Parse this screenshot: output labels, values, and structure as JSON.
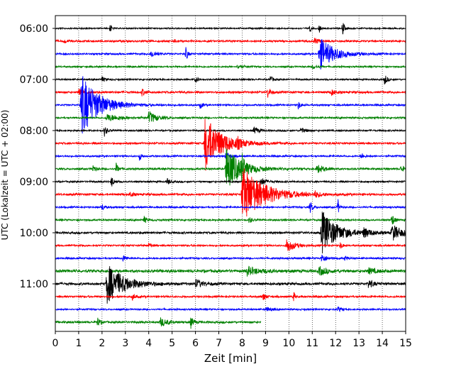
{
  "chart_data": {
    "type": "line",
    "title": "",
    "xlabel": "Zeit  [min]",
    "ylabel": "UTC (Lokalzeit = UTC + 02:00)",
    "xlim": [
      0,
      15
    ],
    "x_ticks": [
      "0",
      "1",
      "2",
      "3",
      "4",
      "5",
      "6",
      "7",
      "8",
      "9",
      "10",
      "11",
      "12",
      "13",
      "14",
      "15"
    ],
    "y_ticks": [
      {
        "label": "06:00",
        "row": 0
      },
      {
        "label": "07:00",
        "row": 4
      },
      {
        "label": "08:00",
        "row": 8
      },
      {
        "label": "09:00",
        "row": 12
      },
      {
        "label": "10:00",
        "row": 16
      },
      {
        "label": "11:00",
        "row": 20
      }
    ],
    "rows_per_hour": 4,
    "minutes_per_row": 15,
    "grid": {
      "vertical": true,
      "style": "dotted"
    },
    "trace_colors": [
      "#000000",
      "#ff0000",
      "#0000ff",
      "#008000"
    ],
    "rows": [
      {
        "time": "06:00",
        "color": "#000000",
        "noise": 0.9,
        "end_min": 15,
        "events": [
          {
            "t": 2.35,
            "a": 8,
            "d": 0.05
          },
          {
            "t": 10.9,
            "a": 6,
            "d": 0.05
          },
          {
            "t": 11.3,
            "a": 6,
            "d": 0.05
          },
          {
            "t": 12.3,
            "a": 15,
            "d": 0.05
          }
        ]
      },
      {
        "time": "06:15",
        "color": "#ff0000",
        "noise": 1.2,
        "end_min": 15,
        "events": [
          {
            "t": 0.4,
            "a": 3,
            "d": 0.1
          },
          {
            "t": 5.1,
            "a": 3,
            "d": 0.1
          },
          {
            "t": 11.1,
            "a": 4,
            "d": 0.2
          }
        ]
      },
      {
        "time": "06:30",
        "color": "#0000ff",
        "noise": 1.1,
        "end_min": 15,
        "events": [
          {
            "t": 4.1,
            "a": 5,
            "d": 0.2
          },
          {
            "t": 5.6,
            "a": 14,
            "d": 0.05
          },
          {
            "t": 11.3,
            "a": 24,
            "d": 0.6
          }
        ]
      },
      {
        "time": "06:45",
        "color": "#008000",
        "noise": 1.0,
        "end_min": 15,
        "events": [
          {
            "t": 7.8,
            "a": 3,
            "d": 0.2
          },
          {
            "t": 11.0,
            "a": 3,
            "d": 0.2
          }
        ]
      },
      {
        "time": "07:00",
        "color": "#000000",
        "noise": 1.0,
        "end_min": 15,
        "events": [
          {
            "t": 2.0,
            "a": 4,
            "d": 0.1
          },
          {
            "t": 6.0,
            "a": 5,
            "d": 0.1
          },
          {
            "t": 9.2,
            "a": 5,
            "d": 0.1
          },
          {
            "t": 14.1,
            "a": 8,
            "d": 0.1
          }
        ]
      },
      {
        "time": "07:15",
        "color": "#ff0000",
        "noise": 1.3,
        "end_min": 15,
        "events": [
          {
            "t": 1.0,
            "a": 5,
            "d": 0.2
          },
          {
            "t": 3.7,
            "a": 5,
            "d": 0.15
          },
          {
            "t": 9.1,
            "a": 9,
            "d": 0.1
          },
          {
            "t": 11.8,
            "a": 5,
            "d": 0.15
          }
        ]
      },
      {
        "time": "07:30",
        "color": "#0000ff",
        "noise": 1.1,
        "end_min": 15,
        "events": [
          {
            "t": 1.1,
            "a": 45,
            "d": 0.7
          },
          {
            "t": 6.2,
            "a": 5,
            "d": 0.1
          },
          {
            "t": 10.4,
            "a": 6,
            "d": 0.1
          }
        ]
      },
      {
        "time": "07:45",
        "color": "#008000",
        "noise": 1.1,
        "end_min": 15,
        "events": [
          {
            "t": 2.2,
            "a": 5,
            "d": 0.6
          },
          {
            "t": 4.0,
            "a": 9,
            "d": 0.3
          }
        ]
      },
      {
        "time": "08:00",
        "color": "#000000",
        "noise": 1.0,
        "end_min": 15,
        "events": [
          {
            "t": 2.1,
            "a": 8,
            "d": 0.1
          },
          {
            "t": 8.5,
            "a": 5,
            "d": 0.2
          },
          {
            "t": 10.5,
            "a": 4,
            "d": 0.2
          }
        ]
      },
      {
        "time": "08:15",
        "color": "#ff0000",
        "noise": 1.2,
        "end_min": 15,
        "events": [
          {
            "t": 6.4,
            "a": 40,
            "d": 0.7
          },
          {
            "t": 7.8,
            "a": 5,
            "d": 0.1
          }
        ]
      },
      {
        "time": "08:30",
        "color": "#0000ff",
        "noise": 1.1,
        "end_min": 15,
        "events": [
          {
            "t": 3.6,
            "a": 6,
            "d": 0.1
          },
          {
            "t": 7.3,
            "a": 5,
            "d": 0.2
          },
          {
            "t": 13.1,
            "a": 5,
            "d": 0.1
          }
        ]
      },
      {
        "time": "08:45",
        "color": "#008000",
        "noise": 1.2,
        "end_min": 15,
        "events": [
          {
            "t": 1.6,
            "a": 6,
            "d": 0.1
          },
          {
            "t": 2.6,
            "a": 8,
            "d": 0.1
          },
          {
            "t": 7.3,
            "a": 32,
            "d": 0.6
          },
          {
            "t": 8.0,
            "a": 26,
            "d": 0.05
          },
          {
            "t": 11.2,
            "a": 6,
            "d": 0.3
          },
          {
            "t": 14.8,
            "a": 6,
            "d": 0.1
          }
        ]
      },
      {
        "time": "09:00",
        "color": "#000000",
        "noise": 1.1,
        "end_min": 15,
        "events": [
          {
            "t": 2.4,
            "a": 8,
            "d": 0.1
          },
          {
            "t": 4.8,
            "a": 5,
            "d": 0.1
          },
          {
            "t": 8.8,
            "a": 6,
            "d": 0.2
          }
        ]
      },
      {
        "time": "09:15",
        "color": "#ff0000",
        "noise": 1.3,
        "end_min": 15,
        "events": [
          {
            "t": 3.2,
            "a": 5,
            "d": 0.1
          },
          {
            "t": 8.0,
            "a": 40,
            "d": 0.9
          },
          {
            "t": 11.1,
            "a": 4,
            "d": 0.2
          }
        ]
      },
      {
        "time": "09:30",
        "color": "#0000ff",
        "noise": 1.1,
        "end_min": 15,
        "events": [
          {
            "t": 2.0,
            "a": 5,
            "d": 0.1
          },
          {
            "t": 10.9,
            "a": 9,
            "d": 0.1
          },
          {
            "t": 12.1,
            "a": 12,
            "d": 0.05
          }
        ]
      },
      {
        "time": "09:45",
        "color": "#008000",
        "noise": 1.1,
        "end_min": 15,
        "events": [
          {
            "t": 3.8,
            "a": 5,
            "d": 0.1
          },
          {
            "t": 8.3,
            "a": 5,
            "d": 0.1
          },
          {
            "t": 14.4,
            "a": 10,
            "d": 0.1
          }
        ]
      },
      {
        "time": "10:00",
        "color": "#000000",
        "noise": 1.3,
        "end_min": 15,
        "events": [
          {
            "t": 11.4,
            "a": 32,
            "d": 0.6
          },
          {
            "t": 13.2,
            "a": 6,
            "d": 0.3
          },
          {
            "t": 14.4,
            "a": 12,
            "d": 0.4
          }
        ]
      },
      {
        "time": "10:15",
        "color": "#ff0000",
        "noise": 1.1,
        "end_min": 15,
        "events": [
          {
            "t": 4.0,
            "a": 4,
            "d": 0.1
          },
          {
            "t": 9.9,
            "a": 10,
            "d": 0.3
          },
          {
            "t": 12.2,
            "a": 5,
            "d": 0.1
          }
        ]
      },
      {
        "time": "10:30",
        "color": "#0000ff",
        "noise": 1.1,
        "end_min": 15,
        "events": [
          {
            "t": 2.9,
            "a": 5,
            "d": 0.1
          },
          {
            "t": 11.4,
            "a": 6,
            "d": 0.2
          },
          {
            "t": 12.4,
            "a": 4,
            "d": 0.1
          }
        ]
      },
      {
        "time": "10:45",
        "color": "#008000",
        "noise": 1.8,
        "end_min": 15,
        "events": [
          {
            "t": 8.2,
            "a": 6,
            "d": 0.5
          },
          {
            "t": 11.3,
            "a": 6,
            "d": 0.3
          },
          {
            "t": 13.4,
            "a": 4,
            "d": 0.3
          }
        ]
      },
      {
        "time": "11:00",
        "color": "#000000",
        "noise": 1.5,
        "end_min": 15,
        "events": [
          {
            "t": 2.2,
            "a": 28,
            "d": 0.7
          },
          {
            "t": 6.0,
            "a": 6,
            "d": 0.3
          },
          {
            "t": 13.4,
            "a": 6,
            "d": 0.2
          }
        ]
      },
      {
        "time": "11:15",
        "color": "#ff0000",
        "noise": 1.2,
        "end_min": 15,
        "events": [
          {
            "t": 3.3,
            "a": 5,
            "d": 0.1
          },
          {
            "t": 8.9,
            "a": 6,
            "d": 0.1
          },
          {
            "t": 10.2,
            "a": 8,
            "d": 0.05
          }
        ]
      },
      {
        "time": "11:30",
        "color": "#0000ff",
        "noise": 1.0,
        "end_min": 15,
        "events": [
          {
            "t": 9.0,
            "a": 4,
            "d": 0.2
          },
          {
            "t": 12.1,
            "a": 4,
            "d": 0.1
          }
        ]
      },
      {
        "time": "11:45",
        "color": "#008000",
        "noise": 1.3,
        "end_min": 8.8,
        "events": [
          {
            "t": 1.8,
            "a": 7,
            "d": 0.1
          },
          {
            "t": 4.5,
            "a": 6,
            "d": 0.3
          },
          {
            "t": 5.8,
            "a": 8,
            "d": 0.1
          }
        ]
      }
    ]
  }
}
